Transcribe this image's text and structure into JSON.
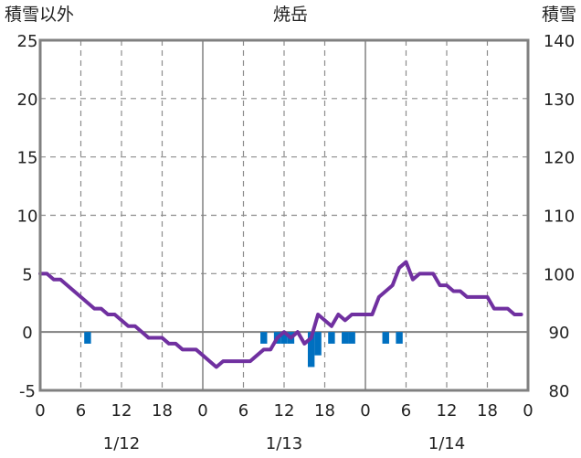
{
  "chart_data": {
    "type": "line",
    "title": "焼岳",
    "left_axis_label": "積雪以外",
    "right_axis_label": "積雪",
    "left_ylim": [
      -5,
      25
    ],
    "left_ticks": [
      -5,
      0,
      5,
      10,
      15,
      20,
      25
    ],
    "right_ylim": [
      80,
      140
    ],
    "right_ticks": [
      80,
      90,
      100,
      110,
      120,
      130,
      140
    ],
    "x_range_hours": [
      0,
      72
    ],
    "x_ticks": [
      {
        "h": 0,
        "label": "0"
      },
      {
        "h": 6,
        "label": "6"
      },
      {
        "h": 12,
        "label": "12"
      },
      {
        "h": 18,
        "label": "18"
      },
      {
        "h": 24,
        "label": "0"
      },
      {
        "h": 30,
        "label": "6"
      },
      {
        "h": 36,
        "label": "12"
      },
      {
        "h": 42,
        "label": "18"
      },
      {
        "h": 48,
        "label": "0"
      },
      {
        "h": 54,
        "label": "6"
      },
      {
        "h": 60,
        "label": "12"
      },
      {
        "h": 66,
        "label": "18"
      },
      {
        "h": 72,
        "label": "0"
      }
    ],
    "date_labels": [
      {
        "h": 12,
        "label": "1/12"
      },
      {
        "h": 36,
        "label": "1/13"
      },
      {
        "h": 60,
        "label": "1/14"
      }
    ],
    "grid": "dashed",
    "series": [
      {
        "kind": "line",
        "axis": "right",
        "color": "#7030a0",
        "x": [
          0,
          1,
          2,
          3,
          4,
          5,
          6,
          7,
          8,
          9,
          10,
          11,
          12,
          13,
          14,
          15,
          16,
          17,
          18,
          19,
          20,
          21,
          22,
          23,
          24,
          25,
          26,
          27,
          28,
          29,
          30,
          31,
          32,
          33,
          34,
          35,
          36,
          37,
          38,
          39,
          40,
          41,
          42,
          43,
          44,
          45,
          46,
          47,
          48,
          49,
          50,
          51,
          52,
          53,
          54,
          55,
          56,
          57,
          58,
          59,
          60,
          61,
          62,
          63,
          64,
          65,
          66,
          67,
          68,
          69,
          70,
          71
        ],
        "values": [
          100.0,
          100.0,
          99.0,
          99.0,
          98.0,
          97.0,
          96.0,
          95.0,
          94.0,
          94.0,
          93.0,
          93.0,
          92.0,
          91.0,
          91.0,
          90.0,
          89.0,
          89.0,
          89.0,
          88.0,
          88.0,
          87.0,
          87.0,
          87.0,
          86.0,
          85.0,
          84.0,
          85.0,
          85.0,
          85.0,
          85.0,
          85.0,
          86.0,
          87.0,
          87.0,
          89.0,
          90.0,
          89.0,
          90.0,
          88.0,
          89.0,
          93.0,
          92.0,
          91.0,
          93.0,
          92.0,
          93.0,
          93.0,
          93.0,
          93.0,
          96.0,
          97.0,
          98.0,
          101.0,
          102.0,
          99.0,
          100.0,
          100.0,
          100.0,
          98.0,
          98.0,
          97.0,
          97.0,
          96.0,
          96.0,
          96.0,
          96.0,
          94.0,
          94.0,
          94.0,
          93.0,
          93.0
        ]
      },
      {
        "kind": "bar",
        "axis": "left",
        "color": "#0070c0",
        "x": [
          7,
          33,
          35,
          36,
          37,
          40,
          41,
          43,
          45,
          46,
          51,
          53
        ],
        "values": [
          -1,
          -1,
          -1,
          -1,
          -1,
          -3,
          -2,
          -1,
          -1,
          -1,
          -1,
          -1
        ]
      }
    ]
  }
}
